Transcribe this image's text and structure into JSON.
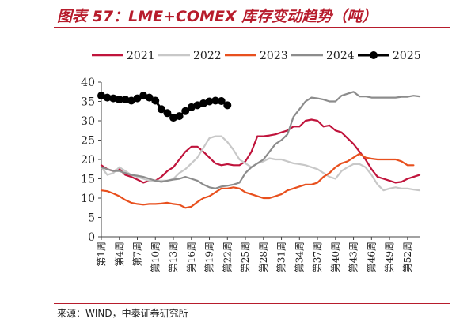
{
  "page": {
    "title": "图表 57：LME+COMEX 库存变动趋势（吨）",
    "source": "来源：WIND，中泰证券研究所"
  },
  "colors": {
    "accent": "#b71c2c"
  },
  "chart_data": {
    "type": "line",
    "title": "图表 57：LME+COMEX 库存变动趋势（吨）",
    "xlabel": "",
    "ylabel": "",
    "ylim": [
      0,
      40
    ],
    "yticks": [
      0,
      5,
      10,
      15,
      20,
      25,
      30,
      35,
      40
    ],
    "xrange": [
      1,
      54
    ],
    "xtick_labels": [
      {
        "week": 1,
        "label": "第1周"
      },
      {
        "week": 4,
        "label": "第4周"
      },
      {
        "week": 7,
        "label": "第7周"
      },
      {
        "week": 10,
        "label": "第10周"
      },
      {
        "week": 13,
        "label": "第13周"
      },
      {
        "week": 16,
        "label": "第16周"
      },
      {
        "week": 19,
        "label": "第19周"
      },
      {
        "week": 22,
        "label": "第22周"
      },
      {
        "week": 25,
        "label": "第25周"
      },
      {
        "week": 28,
        "label": "第28周"
      },
      {
        "week": 31,
        "label": "第31周"
      },
      {
        "week": 34,
        "label": "第34周"
      },
      {
        "week": 37,
        "label": "第37周"
      },
      {
        "week": 40,
        "label": "第40周"
      },
      {
        "week": 43,
        "label": "第43周"
      },
      {
        "week": 46,
        "label": "第46周"
      },
      {
        "week": 49,
        "label": "第49周"
      },
      {
        "week": 52,
        "label": "第52周"
      }
    ],
    "legend_position": "top",
    "series": [
      {
        "name": "2021",
        "color": "#c0143c",
        "marker": false,
        "x": [
          1,
          2,
          3,
          4,
          5,
          6,
          7,
          8,
          9,
          10,
          11,
          12,
          13,
          14,
          15,
          16,
          17,
          18,
          19,
          20,
          21,
          22,
          23,
          24,
          25,
          26,
          27,
          28,
          29,
          30,
          31,
          32,
          33,
          34,
          35,
          36,
          37,
          38,
          39,
          40,
          41,
          42,
          43,
          44,
          45,
          46,
          47,
          48,
          49,
          50,
          51,
          52,
          53,
          54
        ],
        "values": [
          18.5,
          17.5,
          17,
          17.5,
          16,
          15.5,
          14.8,
          14,
          14.5,
          14.5,
          15.5,
          17,
          18,
          20,
          22,
          23.3,
          23.3,
          22,
          20.5,
          19,
          18.5,
          18.8,
          18.5,
          18.5,
          19.5,
          22,
          26,
          26,
          26.2,
          26.5,
          27,
          27.5,
          28.5,
          28.5,
          30,
          30.3,
          30,
          28.5,
          28.8,
          27.5,
          27,
          25.5,
          24,
          22,
          20,
          17.5,
          15.5,
          15,
          14.5,
          14,
          14.2,
          15,
          15.5,
          16
        ]
      },
      {
        "name": "2022",
        "color": "#c8c8c8",
        "marker": false,
        "x": [
          1,
          2,
          3,
          4,
          5,
          6,
          7,
          8,
          9,
          10,
          11,
          12,
          13,
          14,
          15,
          16,
          17,
          18,
          19,
          20,
          21,
          22,
          23,
          24,
          25,
          26,
          27,
          28,
          29,
          30,
          31,
          32,
          33,
          34,
          35,
          36,
          37,
          38,
          39,
          40,
          41,
          42,
          43,
          44,
          45,
          46,
          47,
          48,
          49,
          50,
          51,
          52,
          53,
          54
        ],
        "values": [
          18,
          16,
          16.5,
          18,
          17,
          16,
          15.5,
          15,
          14.5,
          14.5,
          14.5,
          14.5,
          15,
          16.5,
          17.5,
          19,
          20.5,
          23,
          25.5,
          26,
          26,
          24.5,
          22.5,
          20,
          19,
          18,
          19,
          19.5,
          20.3,
          20,
          20,
          19.5,
          19,
          18.8,
          18.5,
          18,
          17.5,
          16.5,
          15.5,
          15,
          17,
          18,
          18.8,
          18.8,
          18,
          16,
          13.5,
          12,
          12.5,
          12.8,
          12.5,
          12.5,
          12.2,
          12
        ]
      },
      {
        "name": "2023",
        "color": "#e8501e",
        "marker": false,
        "x": [
          1,
          2,
          3,
          4,
          5,
          6,
          7,
          8,
          9,
          10,
          11,
          12,
          13,
          14,
          15,
          16,
          17,
          18,
          19,
          20,
          21,
          22,
          23,
          24,
          25,
          26,
          27,
          28,
          29,
          30,
          31,
          32,
          33,
          34,
          35,
          36,
          37,
          38,
          39,
          40,
          41,
          42,
          43,
          44,
          45,
          46,
          47,
          48,
          49,
          50,
          51,
          52,
          53
        ],
        "values": [
          12,
          11.8,
          11.2,
          10.5,
          9.5,
          8.8,
          8.5,
          8.3,
          8.5,
          8.5,
          8.6,
          8.8,
          8.5,
          8.3,
          7.5,
          7.8,
          9,
          10,
          10.5,
          11.5,
          12.5,
          12.5,
          12.8,
          12.5,
          11.5,
          11,
          10.5,
          10,
          10,
          10.5,
          11,
          12,
          12.5,
          13,
          13.5,
          13.5,
          14,
          15.5,
          16.5,
          18,
          19,
          19.5,
          20.5,
          21.5,
          20.5,
          20.2,
          20,
          20,
          20,
          20,
          19.5,
          18.5,
          18.5
        ]
      },
      {
        "name": "2024",
        "color": "#8c8c8c",
        "marker": false,
        "x": [
          1,
          2,
          3,
          4,
          5,
          6,
          7,
          8,
          9,
          10,
          11,
          12,
          13,
          14,
          15,
          16,
          17,
          18,
          19,
          20,
          21,
          22,
          23,
          24,
          25,
          26,
          27,
          28,
          29,
          30,
          31,
          32,
          33,
          34,
          35,
          36,
          37,
          38,
          39,
          40,
          41,
          42,
          43,
          44,
          45,
          46,
          47,
          48,
          49,
          50,
          51,
          52,
          53,
          54
        ],
        "values": [
          18,
          17.5,
          17,
          17,
          16.5,
          16,
          15.8,
          15.5,
          15,
          14.5,
          14.2,
          14.5,
          14.8,
          15,
          15.5,
          15,
          14.5,
          13.5,
          12.8,
          12.5,
          13,
          13.2,
          13.5,
          14,
          16.5,
          18,
          19,
          20,
          22,
          24,
          25,
          26.5,
          31,
          33,
          35,
          36,
          35.8,
          35.5,
          35,
          35,
          36.5,
          37,
          37.5,
          36.3,
          36.3,
          36,
          36,
          36,
          36,
          36,
          36.2,
          36.2,
          36.5,
          36.3
        ]
      },
      {
        "name": "2025",
        "color": "#000000",
        "marker": true,
        "x": [
          1,
          2,
          3,
          4,
          5,
          6,
          7,
          8,
          9,
          10,
          11,
          12,
          13,
          14,
          15,
          16,
          17,
          18,
          19,
          20,
          21,
          22
        ],
        "values": [
          36.5,
          36,
          35.8,
          35.5,
          35.5,
          35.2,
          35.8,
          36.5,
          36,
          35.2,
          33,
          32,
          30.8,
          31.2,
          32.5,
          33.5,
          34,
          34.5,
          35,
          35.2,
          35.1,
          34
        ]
      }
    ]
  }
}
